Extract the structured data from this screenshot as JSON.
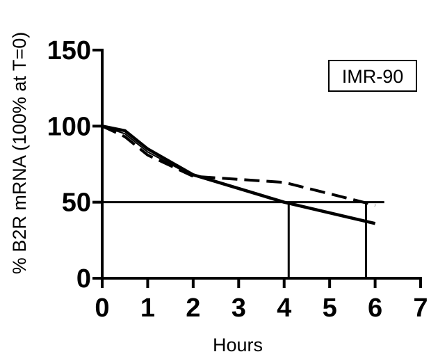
{
  "chart_data": {
    "type": "line",
    "title": "",
    "xlabel": "Hours",
    "ylabel": "% B2R mRNA (100% at T=0)",
    "xlim": [
      0,
      7
    ],
    "ylim": [
      0,
      150
    ],
    "x_ticks": [
      "0",
      "1",
      "2",
      "3",
      "4",
      "5",
      "6",
      "7"
    ],
    "y_ticks": [
      "0",
      "50",
      "100",
      "150"
    ],
    "grid": false,
    "legend": {
      "position": "top-right",
      "text": "IMR-90"
    },
    "series": [
      {
        "style": "solid",
        "x": [
          0,
          0.5,
          1,
          2,
          4,
          6
        ],
        "y": [
          100,
          97,
          85,
          68,
          50,
          36
        ]
      },
      {
        "style": "dashed",
        "x": [
          0,
          0.5,
          1,
          2,
          4,
          6
        ],
        "y": [
          100,
          93,
          81,
          67,
          63,
          48
        ]
      },
      {
        "style": "solid-thin",
        "x": [
          0,
          0.5,
          1,
          2
        ],
        "y": [
          100,
          95,
          83,
          67
        ]
      }
    ],
    "reference_lines": {
      "horizontal": [
        {
          "y": 50,
          "x_start": 0,
          "x_end": 6.2
        }
      ],
      "vertical": [
        {
          "x": 4.1,
          "y_start": 0,
          "y_end": 50
        },
        {
          "x": 5.8,
          "y_start": 0,
          "y_end": 50
        }
      ]
    },
    "line_color": "#000000",
    "background_color": "#ffffff"
  }
}
